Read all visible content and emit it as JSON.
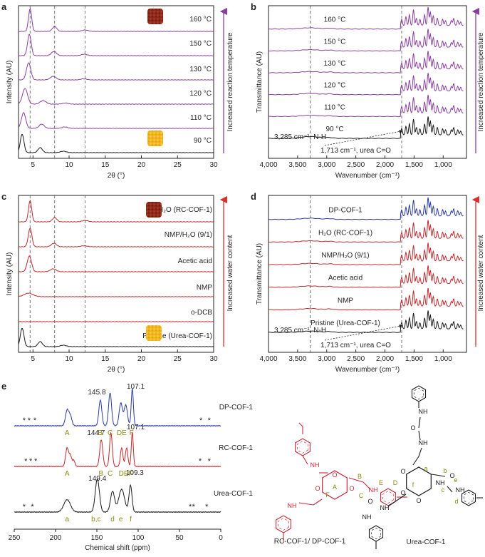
{
  "colors": {
    "purple": "#8a3f9e",
    "black": "#1a1a1a",
    "red": "#c0282d",
    "blue": "#2b3a9c",
    "axis": "#231f20",
    "olive": "#8a8a14",
    "cof_red": "#c8283c",
    "dashed": "#555555",
    "orange_photo": "#f2b51c",
    "brown_photo": "#8e2a1c",
    "arrow_red": "#d6322e"
  },
  "chart_data": [
    {
      "panel": "a",
      "type": "line",
      "title": "",
      "xlabel": "2θ (°)",
      "ylabel": "Intensity (AU)",
      "xlim": [
        3,
        30
      ],
      "xticks": [
        5,
        10,
        15,
        20,
        25,
        30
      ],
      "dashed_x": [
        4.6,
        8.0,
        12.2
      ],
      "side_label": "Increased reaction temperature",
      "series": [
        {
          "name": "90 °C",
          "color": "#1a1a1a",
          "peaks": [
            [
              3.5,
              26,
              0.25
            ],
            [
              6.0,
              7,
              0.3
            ],
            [
              9.2,
              2,
              0.4
            ]
          ]
        },
        {
          "name": "110 °C",
          "color": "#8a3f9e",
          "peaks": [
            [
              3.7,
              22,
              0.3
            ],
            [
              6.2,
              6,
              0.35
            ],
            [
              9.4,
              2,
              0.4
            ]
          ]
        },
        {
          "name": "120 °C",
          "color": "#8a3f9e",
          "peaks": [
            [
              3.9,
              22,
              0.35
            ],
            [
              6.4,
              5,
              0.4
            ],
            [
              9.5,
              1.5,
              0.4
            ]
          ]
        },
        {
          "name": "130 °C",
          "color": "#8a3f9e",
          "peaks": [
            [
              4.4,
              24,
              0.3
            ],
            [
              7.8,
              5,
              0.4
            ],
            [
              12.0,
              1.5,
              0.4
            ]
          ]
        },
        {
          "name": "150 °C",
          "color": "#8a3f9e",
          "peaks": [
            [
              4.5,
              30,
              0.25
            ],
            [
              7.9,
              6,
              0.35
            ],
            [
              12.1,
              2,
              0.4
            ]
          ]
        },
        {
          "name": "160 °C",
          "color": "#8a3f9e",
          "peaks": [
            [
              4.6,
              32,
              0.22
            ],
            [
              8.0,
              7,
              0.3
            ],
            [
              12.2,
              2,
              0.4
            ]
          ]
        }
      ]
    },
    {
      "panel": "b",
      "type": "line",
      "xlabel": "Wavenumber (cm⁻¹)",
      "ylabel": "Transmittance (AU)",
      "xlim": [
        4000,
        600
      ],
      "xticks": [
        4000,
        3500,
        3000,
        2500,
        2000,
        1500,
        1000
      ],
      "tick_labels": [
        "4,000",
        "3,500",
        "3,000",
        "2,500",
        "2,000",
        "1,500",
        "1,000"
      ],
      "dashed_x": [
        3285,
        1713
      ],
      "side_label": "Increased reaction temperature",
      "annotations": [
        "3,285 cm⁻¹, N-H",
        "1,713 cm⁻¹, urea C=O"
      ],
      "series": [
        {
          "name": "90 °C",
          "color": "#1a1a1a"
        },
        {
          "name": "110 °C",
          "color": "#8a3f9e"
        },
        {
          "name": "120 °C",
          "color": "#8a3f9e"
        },
        {
          "name": "130 °C",
          "color": "#8a3f9e"
        },
        {
          "name": "150 °C",
          "color": "#8a3f9e"
        },
        {
          "name": "160 °C",
          "color": "#8a3f9e"
        }
      ]
    },
    {
      "panel": "c",
      "type": "line",
      "xlabel": "2θ (°)",
      "ylabel": "Intensity (AU)",
      "xlim": [
        3,
        30
      ],
      "xticks": [
        5,
        10,
        15,
        20,
        25,
        30
      ],
      "dashed_x": [
        4.6,
        8.0,
        12.2
      ],
      "side_label": "Increased water content",
      "series": [
        {
          "name": "Pristine (Urea-COF-1)",
          "color": "#1a1a1a",
          "peaks": [
            [
              3.5,
              26,
              0.25
            ],
            [
              6.0,
              7,
              0.3
            ],
            [
              9.2,
              2,
              0.4
            ]
          ]
        },
        {
          "name": "o-DCB",
          "color": "#c0282d",
          "peaks": []
        },
        {
          "name": "NMP",
          "color": "#c0282d",
          "peaks": [
            [
              4.4,
              5,
              0.6
            ]
          ]
        },
        {
          "name": "Acetic acid",
          "color": "#c0282d",
          "peaks": [
            [
              4.5,
              22,
              0.3
            ],
            [
              7.8,
              4,
              0.4
            ]
          ]
        },
        {
          "name": "NMP/H₂O (9/1)",
          "color": "#c0282d",
          "peaks": [
            [
              4.6,
              26,
              0.25
            ],
            [
              7.9,
              5,
              0.35
            ],
            [
              12.1,
              1.5,
              0.4
            ]
          ]
        },
        {
          "name": "H₂O (RC-COF-1)",
          "color": "#c0282d",
          "peaks": [
            [
              4.6,
              30,
              0.22
            ],
            [
              8.0,
              6,
              0.3
            ],
            [
              12.2,
              2,
              0.4
            ]
          ]
        }
      ]
    },
    {
      "panel": "d",
      "type": "line",
      "xlabel": "Wavenumber (cm⁻¹)",
      "ylabel": "Transmittance (AU)",
      "xlim": [
        4000,
        600
      ],
      "xticks": [
        4000,
        3500,
        3000,
        2500,
        2000,
        1500,
        1000
      ],
      "tick_labels": [
        "4,000",
        "3,500",
        "3,000",
        "2,500",
        "2,000",
        "1,500",
        "1,000"
      ],
      "dashed_x": [
        3285,
        1713
      ],
      "side_label": "Increased water content",
      "annotations": [
        "3,285 cm⁻¹, N-H",
        "1,713 cm⁻¹, urea C=O"
      ],
      "series": [
        {
          "name": "Pristine (Urea-COF-1)",
          "color": "#1a1a1a"
        },
        {
          "name": "NMP",
          "color": "#c0282d"
        },
        {
          "name": "Acetic acid",
          "color": "#c0282d"
        },
        {
          "name": "NMP/H₂O (9/1)",
          "color": "#c0282d"
        },
        {
          "name": "H₂O (RC-COF-1)",
          "color": "#c0282d"
        },
        {
          "name": "DP-COF-1",
          "color": "#2b3a9c"
        }
      ]
    },
    {
      "panel": "e",
      "type": "line",
      "xlabel": "Chemical shift (ppm)",
      "xlim": [
        250,
        0
      ],
      "xticks": [
        250,
        200,
        150,
        100,
        50,
        0
      ],
      "series": [
        {
          "name": "Urea-COF-1",
          "color": "#1a1a1a",
          "peaks": [
            [
              186,
              12,
              4
            ],
            [
              149.4,
              32,
              2.5
            ],
            [
              131,
              20,
              2.5
            ],
            [
              120,
              22,
              3.5
            ],
            [
              109.3,
              26,
              1.8
            ]
          ],
          "labels": [
            [
              "a",
              186
            ],
            [
              "b,c",
              151
            ],
            [
              "d",
              131
            ],
            [
              "e",
              121
            ],
            [
              "f",
              109
            ]
          ],
          "numbers": [
            [
              "149.4",
              149.4
            ],
            [
              "109.3",
              104
            ]
          ],
          "stars": [
            238,
            228,
            37,
            33,
            17
          ]
        },
        {
          "name": "RC-COF-1",
          "color": "#c0282d",
          "peaks": [
            [
              186,
              18,
              1.8
            ],
            [
              182,
              10,
              1.5
            ],
            [
              178,
              6,
              1.5
            ],
            [
              144.7,
              26,
              1.8
            ],
            [
              133,
              33,
              1.6
            ],
            [
              120,
              18,
              1.5
            ],
            [
              114,
              18,
              1.5
            ],
            [
              107.1,
              33,
              1.2
            ]
          ],
          "labels": [
            [
              "A",
              186
            ],
            [
              "B",
              145
            ],
            [
              "C",
              134
            ],
            [
              "DEF",
              115
            ]
          ],
          "numbers": [
            [
              "144.7",
              151
            ],
            [
              "107.1",
              103
            ]
          ],
          "stars": [
            236,
            230,
            224,
            25,
            14
          ]
        },
        {
          "name": "DP-COF-1",
          "color": "#2b3a9c",
          "peaks": [
            [
              186,
              15,
              2
            ],
            [
              182,
              9,
              1.8
            ],
            [
              145.8,
              25,
              1.8
            ],
            [
              134,
              32,
              1.8
            ],
            [
              121,
              22,
              2
            ],
            [
              115,
              20,
              2
            ],
            [
              107.1,
              36,
              1.3
            ]
          ],
          "labels": [
            [
              "A",
              186
            ],
            [
              "B",
              146
            ],
            [
              "C",
              134
            ],
            [
              "DE",
              120
            ],
            [
              "F",
              108
            ]
          ],
          "numbers": [
            [
              "145.8",
              150
            ],
            [
              "107.1",
              103
            ]
          ],
          "stars": [
            238,
            232,
            225,
            24,
            14
          ]
        }
      ]
    }
  ],
  "panel_letters": [
    "a",
    "b",
    "c",
    "d",
    "e"
  ],
  "structures": {
    "left_caption": "RC-COF-1/ DP-COF-1",
    "right_caption": "Urea-COF-1",
    "left_letters": [
      "A",
      "B",
      "C",
      "D",
      "E",
      "F"
    ],
    "right_letters": [
      "a",
      "b",
      "c",
      "d",
      "e",
      "f"
    ],
    "atoms": [
      "NH",
      "O",
      "N",
      "H"
    ]
  }
}
